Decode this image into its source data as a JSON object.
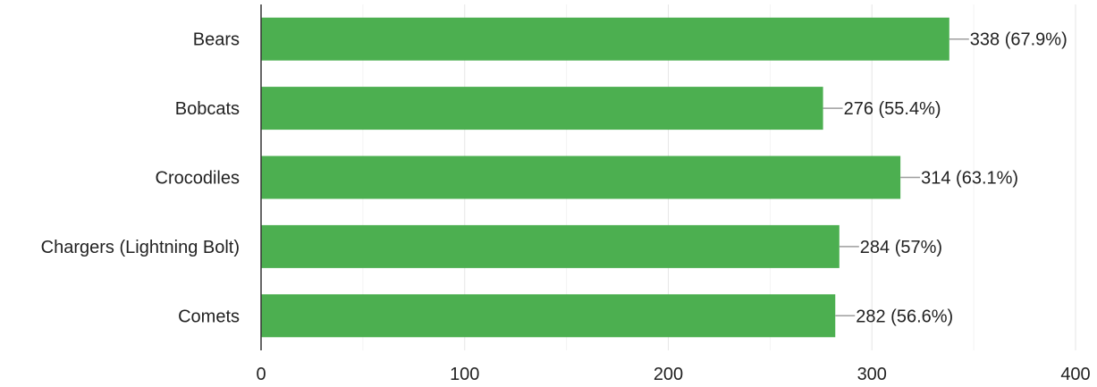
{
  "chart_data": {
    "type": "bar",
    "orientation": "horizontal",
    "categories": [
      "Bears",
      "Bobcats",
      "Crocodiles",
      "Chargers (Lightning Bolt)",
      "Comets"
    ],
    "values": [
      338,
      276,
      314,
      284,
      282
    ],
    "data_labels": [
      "338 (67.9%)",
      "276 (55.4%)",
      "314 (63.1%)",
      "284 (57%)",
      "282 (56.6%)"
    ],
    "xlim": [
      0,
      400
    ],
    "x_ticks": [
      0,
      100,
      200,
      300,
      400
    ],
    "title": "",
    "xlabel": "",
    "ylabel": "",
    "grid": true,
    "colors": {
      "bar": "#4caf50",
      "grid_major": "#e6e6e6",
      "grid_minor": "#f3f3f3",
      "axis": "#333333",
      "leader": "#9e9e9e",
      "text": "#222222"
    }
  }
}
